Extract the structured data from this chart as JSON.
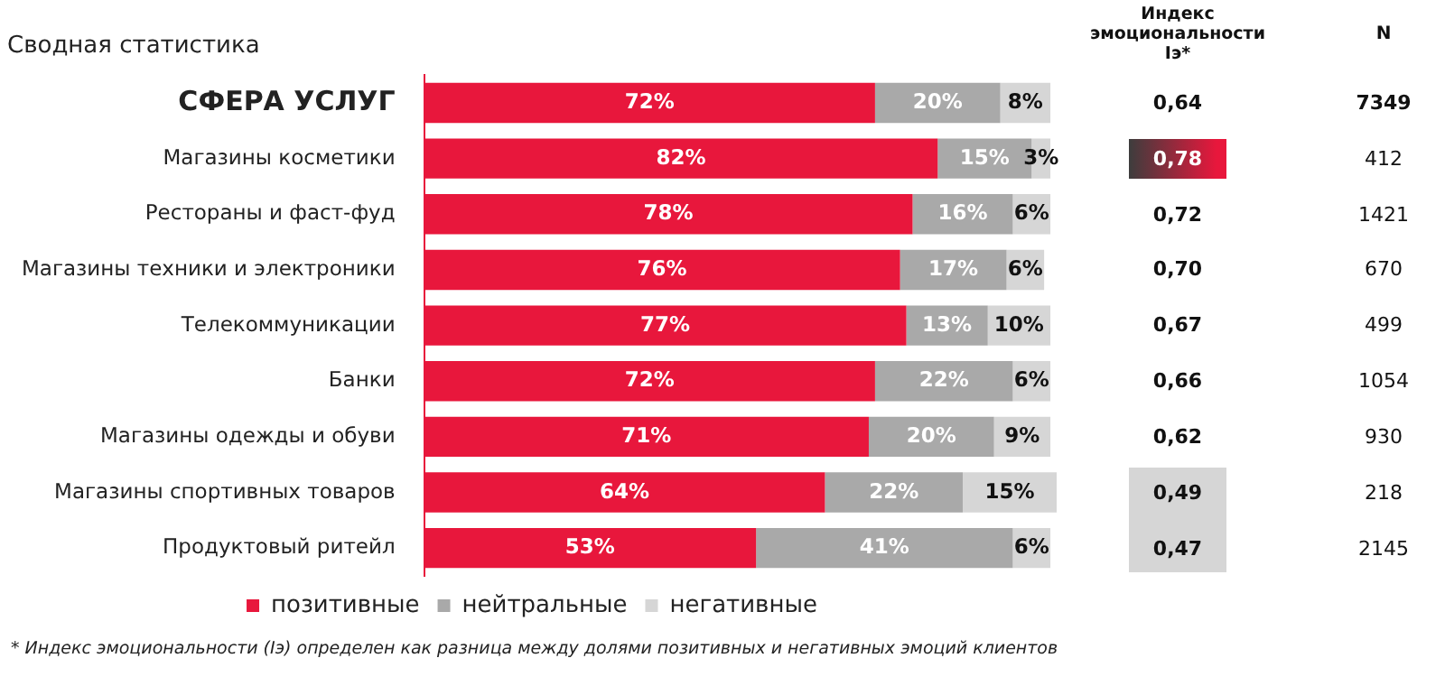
{
  "chart_data": {
    "type": "bar",
    "orientation": "horizontal",
    "stacked": true,
    "title": "Сводная статистика",
    "categories": [
      "СФЕРА УСЛУГ",
      "Магазины косметики",
      "Рестораны и фаст-фуд",
      "Магазины техники и электроники",
      "Телекоммуникации",
      "Банки",
      "Магазины одежды и обуви",
      "Магазины спортивных товаров",
      "Продуктовый ритейл"
    ],
    "series": [
      {
        "name": "позитивные",
        "color": "#e8173c",
        "values": [
          72,
          82,
          78,
          76,
          77,
          72,
          71,
          64,
          53
        ],
        "value_labels": [
          "72%",
          "82%",
          "78%",
          "76%",
          "77%",
          "72%",
          "71%",
          "64%",
          "53%"
        ]
      },
      {
        "name": "нейтральные",
        "color": "#a9a9a9",
        "values": [
          20,
          15,
          16,
          17,
          13,
          22,
          20,
          22,
          41
        ],
        "value_labels": [
          "20%",
          "15%",
          "16%",
          "17%",
          "13%",
          "22%",
          "20%",
          "22%",
          "41%"
        ]
      },
      {
        "name": "негативные",
        "color": "#d6d6d6",
        "values": [
          8,
          3,
          6,
          6,
          10,
          6,
          9,
          15,
          6
        ],
        "value_labels": [
          "8%",
          "3%",
          "6%",
          "6%",
          "10%",
          "6%",
          "9%",
          "15%",
          "6%"
        ]
      }
    ],
    "xlim": [
      0,
      101
    ],
    "tick_labels": "y",
    "legend": "bottom",
    "annotations": [
      "Индекс эмоциональности Iэ*",
      "N",
      "0,64",
      "0,78",
      "0,72",
      "0,70",
      "0,67",
      "0,66",
      "0,62",
      "0,49",
      "0,47",
      "7349",
      "412",
      "1421",
      "670",
      "499",
      "1054",
      "930",
      "218",
      "2145",
      "* Индекс эмоциональности (Iэ) определен как разница между долями позитивных и негативных эмоций клиентов"
    ]
  }
}
